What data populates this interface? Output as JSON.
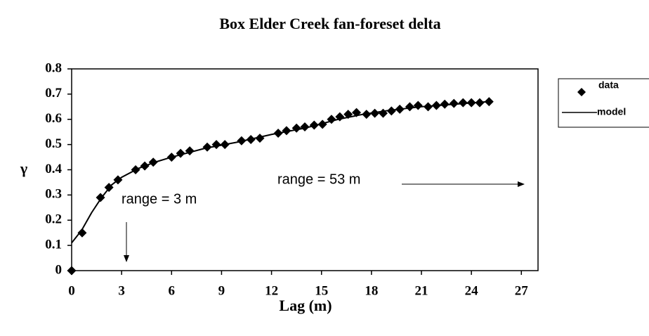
{
  "chart_data": {
    "type": "scatter",
    "title": "Box Elder Creek fan-foreset delta",
    "xlabel": "Lag (m)",
    "ylabel": "γ",
    "xlim": [
      0,
      28
    ],
    "ylim": [
      0,
      0.8
    ],
    "xticks": [
      0,
      3,
      6,
      9,
      12,
      15,
      18,
      21,
      24,
      27
    ],
    "yticks": [
      0,
      0.1,
      0.2,
      0.3,
      0.4,
      0.5,
      0.6,
      0.7,
      0.8
    ],
    "legend": "right",
    "series": [
      {
        "name": "data",
        "kind": "marker",
        "color": "#000000",
        "x": [
          0,
          0.63,
          1.73,
          2.24,
          2.78,
          3.84,
          4.39,
          4.9,
          6.0,
          6.54,
          7.09,
          8.14,
          8.69,
          9.2,
          10.2,
          10.76,
          11.3,
          12.4,
          12.9,
          13.5,
          14.0,
          14.56,
          15.06,
          15.6,
          16.1,
          16.6,
          17.1,
          17.7,
          18.2,
          18.7,
          19.2,
          19.7,
          20.3,
          20.8,
          21.4,
          21.9,
          22.4,
          22.95,
          23.5,
          24.0,
          24.5,
          25.06
        ],
        "values": [
          0,
          0.15,
          0.29,
          0.33,
          0.36,
          0.4,
          0.415,
          0.43,
          0.45,
          0.465,
          0.475,
          0.49,
          0.5,
          0.5,
          0.515,
          0.52,
          0.525,
          0.545,
          0.555,
          0.565,
          0.57,
          0.577,
          0.58,
          0.6,
          0.61,
          0.62,
          0.627,
          0.62,
          0.624,
          0.624,
          0.633,
          0.64,
          0.65,
          0.655,
          0.65,
          0.655,
          0.66,
          0.663,
          0.666,
          0.666,
          0.666,
          0.67
        ]
      },
      {
        "name": "model",
        "kind": "line",
        "color": "#000000",
        "x": [
          0,
          0.6,
          1.2,
          1.8,
          2.4,
          3.0,
          4.0,
          5.0,
          6.0,
          8.0,
          10.0,
          12.0,
          14.0,
          16.0,
          17.5,
          19.0,
          21.0,
          23.0,
          25.0
        ],
        "values": [
          0.11,
          0.16,
          0.23,
          0.29,
          0.34,
          0.37,
          0.405,
          0.43,
          0.45,
          0.485,
          0.51,
          0.54,
          0.565,
          0.6,
          0.62,
          0.635,
          0.65,
          0.66,
          0.67
        ]
      }
    ],
    "annotations": [
      {
        "text": "range = 3 m"
      },
      {
        "text": "range = 53 m"
      }
    ]
  }
}
